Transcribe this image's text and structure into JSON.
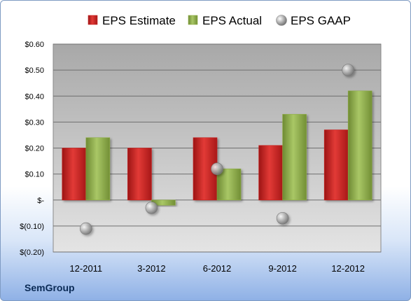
{
  "company": "SemGroup",
  "chart_data": {
    "type": "bar",
    "categories": [
      "12-2011",
      "3-2012",
      "6-2012",
      "9-2012",
      "12-2012"
    ],
    "series": [
      {
        "name": "EPS Estimate",
        "kind": "bar",
        "color": "#c8201f",
        "values": [
          0.2,
          0.2,
          0.24,
          0.21,
          0.27
        ]
      },
      {
        "name": "EPS Actual",
        "kind": "bar",
        "color": "#8fae45",
        "values": [
          0.24,
          -0.02,
          0.12,
          0.33,
          0.42
        ]
      },
      {
        "name": "EPS GAAP",
        "kind": "marker",
        "color": "#b0b0b0",
        "values": [
          -0.11,
          -0.03,
          0.12,
          -0.07,
          0.5
        ]
      }
    ],
    "yticks": [
      0.6,
      0.5,
      0.4,
      0.3,
      0.2,
      0.1,
      0.0,
      -0.1,
      -0.2
    ],
    "ytick_labels": [
      "$0.60",
      "$0.50",
      "$0.40",
      "$0.30",
      "$0.20",
      "$0.10",
      "$-",
      "$(0.10)",
      "$(0.20)"
    ],
    "ylim": [
      -0.2,
      0.6
    ],
    "grid": true,
    "legend_position": "top"
  }
}
